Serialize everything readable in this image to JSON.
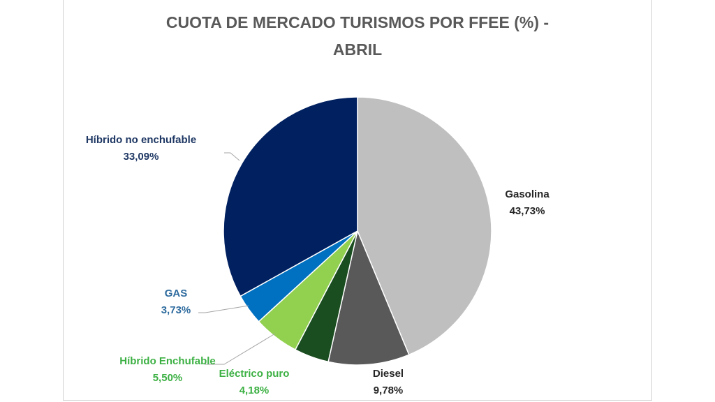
{
  "chart_data": {
    "type": "pie",
    "title_lines": [
      "CUOTA DE MERCADO TURISMOS POR FFEE (%) -",
      "ABRIL"
    ],
    "slices": [
      {
        "name": "Gasolina",
        "value": 43.73,
        "value_label": "43,73%",
        "color": "#bfbfbf",
        "label_color": "#262626"
      },
      {
        "name": "Diesel",
        "value": 9.78,
        "value_label": "9,78%",
        "color": "#595959",
        "label_color": "#262626"
      },
      {
        "name": "Eléctrico puro",
        "value": 4.18,
        "value_label": "4,18%",
        "color": "#1a4d1f",
        "label_color": "#3cb043"
      },
      {
        "name": "Híbrido Enchufable",
        "value": 5.5,
        "value_label": "5,50%",
        "color": "#92d050",
        "label_color": "#3cb043"
      },
      {
        "name": "GAS",
        "value": 3.73,
        "value_label": "3,73%",
        "color": "#0070c0",
        "label_color": "#2e6b9e"
      },
      {
        "name": "Híbrido no enchufable",
        "value": 33.09,
        "value_label": "33,09%",
        "color": "#002060",
        "label_color": "#1f3864"
      }
    ],
    "start_angle": "12 o'clock",
    "direction": "clockwise",
    "legend": "none",
    "data_labels": "category name and percentage"
  }
}
